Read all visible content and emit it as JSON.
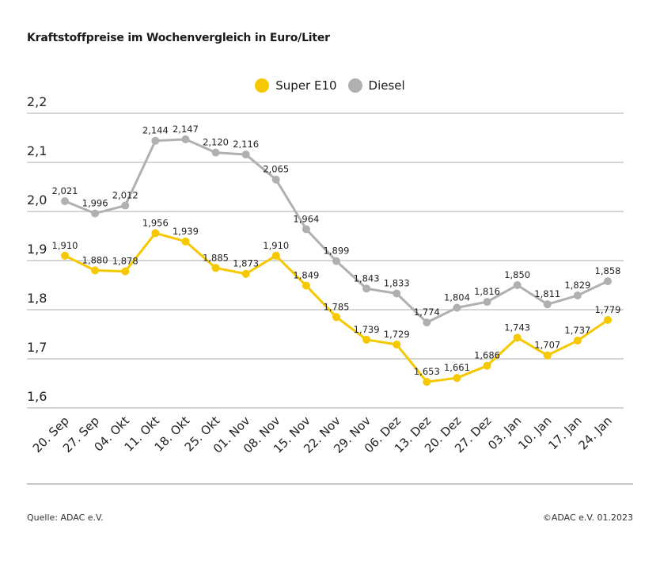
{
  "chart_data": {
    "type": "line",
    "title": "Kraftstoffpreise im Wochenvergleich in Euro/Liter",
    "categories": [
      "20. Sep",
      "27. Sep",
      "04. Okt",
      "11. Okt",
      "18. Okt",
      "25. Okt",
      "01. Nov",
      "08. Nov",
      "15. Nov",
      "22. Nov",
      "29. Nov",
      "06. Dez",
      "13. Dez",
      "20. Dez",
      "27. Dez",
      "03. Jan",
      "10. Jan",
      "17. Jan",
      "24. Jan"
    ],
    "series": [
      {
        "name": "Super E10",
        "color": "#f5c800",
        "values": [
          1.91,
          1.88,
          1.878,
          1.956,
          1.939,
          1.885,
          1.873,
          1.91,
          1.849,
          1.785,
          1.739,
          1.729,
          1.653,
          1.661,
          1.686,
          1.743,
          1.707,
          1.737,
          1.779
        ]
      },
      {
        "name": "Diesel",
        "color": "#b0b0b0",
        "values": [
          2.021,
          1.996,
          2.012,
          2.144,
          2.147,
          2.12,
          2.116,
          2.065,
          1.964,
          1.899,
          1.843,
          1.833,
          1.774,
          1.804,
          1.816,
          1.85,
          1.811,
          1.829,
          1.858
        ]
      }
    ],
    "yticks": [
      "1,6",
      "1,7",
      "1,8",
      "1,9",
      "2,0",
      "2,1",
      "2,2"
    ],
    "ylim": [
      1.6,
      2.2
    ],
    "xlabel": "",
    "ylabel": "",
    "grid": true,
    "legend": "top-center"
  },
  "footer": {
    "source": "Quelle: ADAC e.V.",
    "copyright": "©ADAC e.V. 01.2023"
  }
}
